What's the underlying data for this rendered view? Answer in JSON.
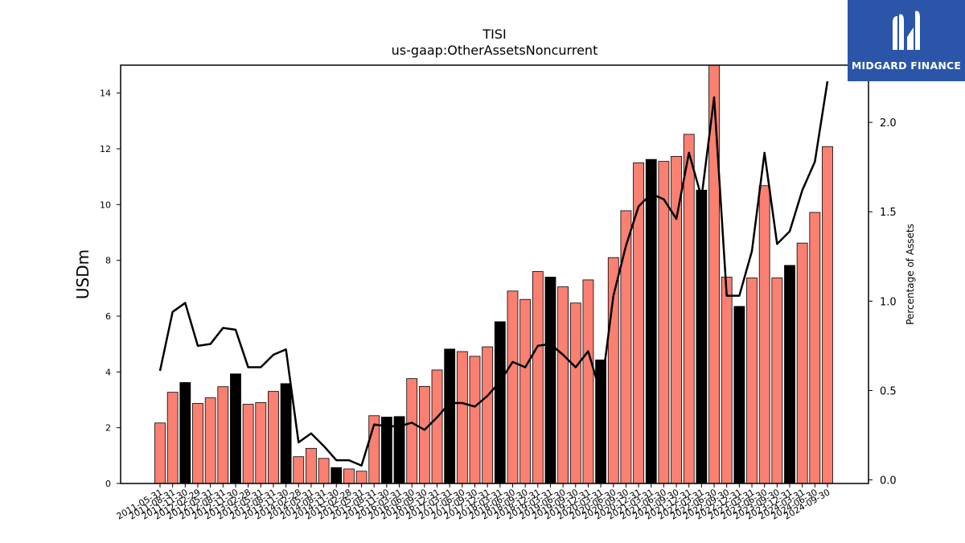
{
  "brand": {
    "name": "MIDGARD FINANCE",
    "logo": "midgard-m-logo",
    "background": "#2b55a8"
  },
  "chart_data": {
    "type": "bar",
    "title": "TISI",
    "subtitle": "us-gaap:OtherAssetsNoncurrent",
    "ylabel": "USDm",
    "y2label": "Percentage of Assets",
    "ylim": [
      0,
      15
    ],
    "y2lim": [
      -0.02,
      2.32
    ],
    "yticks": [
      0,
      2,
      4,
      6,
      8,
      10,
      12,
      14
    ],
    "y2ticks": [
      0.0,
      0.5,
      1.0,
      1.5,
      2.0
    ],
    "y2tick_labels": [
      "0.0",
      "0.5",
      "1.0",
      "1.5",
      "2.0"
    ],
    "grid": false,
    "colors": {
      "bar": "#fa8072",
      "bar_highlight": "#000000",
      "line": "#000000"
    },
    "categories": [
      "2011-05-31",
      "2011-08-31",
      "2011-11-30",
      "2012-02-29",
      "2012-05-31",
      "2012-08-31",
      "2012-11-30",
      "2013-02-28",
      "2013-05-31",
      "2013-08-31",
      "2013-11-30",
      "2014-02-28",
      "2014-05-31",
      "2014-08-31",
      "2014-11-30",
      "2015-02-28",
      "2015-05-31",
      "2015-08-31",
      "2015-11-30",
      "2016-03-31",
      "2016-06-30",
      "2016-09-30",
      "2016-12-31",
      "2017-03-31",
      "2017-06-30",
      "2017-09-30",
      "2017-12-31",
      "2018-03-31",
      "2018-06-30",
      "2018-09-30",
      "2018-12-31",
      "2019-03-31",
      "2019-06-30",
      "2019-09-30",
      "2019-12-31",
      "2020-03-31",
      "2020-06-30",
      "2020-09-30",
      "2020-12-31",
      "2021-03-31",
      "2021-06-30",
      "2021-09-30",
      "2021-12-31",
      "2022-03-31",
      "2022-06-30",
      "2022-09-30",
      "2022-12-31",
      "2023-03-31",
      "2023-06-30",
      "2023-09-30",
      "2023-12-31",
      "2024-03-31",
      "2024-06-30",
      "2024-09-30"
    ],
    "series": [
      {
        "type": "bar",
        "values": [
          2.17,
          3.27,
          3.62,
          2.87,
          3.07,
          3.47,
          3.93,
          2.84,
          2.9,
          3.3,
          3.58,
          0.96,
          1.26,
          0.9,
          0.57,
          0.52,
          0.44,
          2.43,
          2.38,
          2.4,
          3.76,
          3.48,
          4.07,
          4.82,
          4.73,
          4.56,
          4.9,
          5.8,
          6.9,
          6.6,
          7.6,
          7.4,
          7.05,
          6.47,
          7.3,
          4.43,
          8.1,
          9.78,
          11.5,
          11.62,
          11.55,
          11.73,
          12.52,
          10.52,
          15.0,
          7.4,
          6.35,
          7.37,
          10.68,
          7.37,
          7.82,
          8.62,
          9.72,
          12.08
        ],
        "highlight": [
          false,
          false,
          true,
          false,
          false,
          false,
          true,
          false,
          false,
          false,
          true,
          false,
          false,
          false,
          true,
          false,
          false,
          false,
          true,
          true,
          false,
          false,
          false,
          true,
          false,
          false,
          false,
          true,
          false,
          false,
          false,
          true,
          false,
          false,
          false,
          true,
          false,
          false,
          false,
          true,
          false,
          false,
          false,
          true,
          false,
          false,
          true,
          false,
          false,
          false,
          true,
          false,
          false,
          false
        ]
      },
      {
        "type": "line",
        "axis": "right",
        "values": [
          0.61,
          0.94,
          0.99,
          0.75,
          0.76,
          0.85,
          0.84,
          0.63,
          0.63,
          0.7,
          0.73,
          0.21,
          0.26,
          0.19,
          0.11,
          0.11,
          0.08,
          0.31,
          0.3,
          0.3,
          0.32,
          0.28,
          0.35,
          0.43,
          0.43,
          0.41,
          0.47,
          0.55,
          0.66,
          0.63,
          0.75,
          0.76,
          0.7,
          0.63,
          0.72,
          0.48,
          1.03,
          1.31,
          1.53,
          1.6,
          1.57,
          1.46,
          1.83,
          1.58,
          2.14,
          1.03,
          1.03,
          1.28,
          1.83,
          1.32,
          1.39,
          1.62,
          1.78,
          2.23
        ]
      }
    ]
  }
}
